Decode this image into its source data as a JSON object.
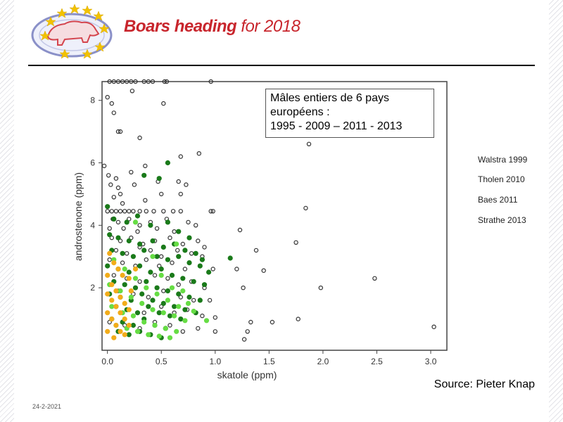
{
  "header": {
    "brand_bold": "Boars heading",
    "brand_rest": " for 2018",
    "logo_icon": "eu-stars-boar-logo-icon"
  },
  "callout": {
    "line1": "Mâles entiers de 6 pays",
    "line2": "européens :",
    "line3": "1995 - 2009 – 2011 - 2013"
  },
  "legend": [
    "Walstra 1999",
    "Tholen 2010",
    "Baes 2011",
    "Strathe 2013"
  ],
  "source": "Source: Pieter Knap",
  "footer_date": "24-2-2021",
  "colors": {
    "brand_red": "#c8252c",
    "walstra": "#333333",
    "tholen": "#1a7a1a",
    "baes": "#66dd44",
    "strathe": "#f2ac1a"
  },
  "chart_data": {
    "type": "scatter",
    "xlabel": "skatole (ppm)",
    "ylabel": "androstenone (ppm)",
    "xlim": [
      -0.05,
      3.15
    ],
    "ylim": [
      0,
      8.6
    ],
    "xticks": [
      "0.0",
      "0.5",
      "1.0",
      "1.5",
      "2.0",
      "2.5",
      "3.0"
    ],
    "xtick_values": [
      0,
      0.5,
      1.0,
      1.5,
      2.0,
      2.5,
      3.0
    ],
    "yticks": [
      "2",
      "4",
      "6",
      "8"
    ],
    "ytick_values": [
      2,
      4,
      6,
      8
    ],
    "grid": false,
    "series": [
      {
        "name": "Walstra 1999",
        "marker": "open-circle",
        "color": "#333333",
        "points": [
          [
            0.02,
            8.6
          ],
          [
            0.06,
            8.6
          ],
          [
            0.1,
            8.6
          ],
          [
            0.14,
            8.6
          ],
          [
            0.18,
            8.6
          ],
          [
            0.22,
            8.6
          ],
          [
            0.26,
            8.6
          ],
          [
            0.34,
            8.6
          ],
          [
            0.38,
            8.6
          ],
          [
            0.42,
            8.6
          ],
          [
            0.53,
            8.6
          ],
          [
            0.55,
            8.6
          ],
          [
            0.96,
            8.6
          ],
          [
            0.23,
            8.3
          ],
          [
            0.0,
            8.1
          ],
          [
            0.04,
            7.9
          ],
          [
            0.52,
            7.9
          ],
          [
            0.06,
            7.6
          ],
          [
            0.1,
            7.0
          ],
          [
            0.12,
            7.0
          ],
          [
            0.3,
            6.8
          ],
          [
            0.68,
            6.2
          ],
          [
            0.85,
            6.3
          ],
          [
            1.87,
            6.6
          ],
          [
            -0.03,
            5.9
          ],
          [
            0.22,
            5.7
          ],
          [
            0.35,
            5.9
          ],
          [
            0.01,
            5.6
          ],
          [
            0.08,
            5.5
          ],
          [
            0.25,
            5.3
          ],
          [
            0.47,
            5.4
          ],
          [
            0.66,
            5.4
          ],
          [
            0.73,
            5.3
          ],
          [
            0.03,
            5.3
          ],
          [
            0.1,
            5.2
          ],
          [
            0.12,
            5.0
          ],
          [
            0.5,
            5.0
          ],
          [
            0.68,
            5.0
          ],
          [
            0.06,
            4.9
          ],
          [
            0.35,
            4.8
          ],
          [
            0.14,
            4.7
          ],
          [
            0.0,
            4.45
          ],
          [
            0.04,
            4.45
          ],
          [
            0.08,
            4.45
          ],
          [
            0.12,
            4.45
          ],
          [
            0.16,
            4.45
          ],
          [
            0.2,
            4.45
          ],
          [
            0.24,
            4.45
          ],
          [
            0.3,
            4.45
          ],
          [
            0.36,
            4.45
          ],
          [
            0.43,
            4.45
          ],
          [
            0.52,
            4.45
          ],
          [
            0.61,
            4.45
          ],
          [
            0.68,
            4.45
          ],
          [
            0.96,
            4.45
          ],
          [
            0.98,
            4.45
          ],
          [
            1.84,
            4.55
          ],
          [
            0.05,
            4.2
          ],
          [
            0.1,
            4.1
          ],
          [
            0.2,
            4.2
          ],
          [
            0.3,
            4.0
          ],
          [
            0.4,
            4.1
          ],
          [
            0.55,
            4.2
          ],
          [
            0.75,
            4.1
          ],
          [
            0.82,
            4.0
          ],
          [
            0.02,
            3.9
          ],
          [
            0.15,
            3.9
          ],
          [
            0.28,
            3.8
          ],
          [
            0.46,
            3.9
          ],
          [
            0.62,
            3.8
          ],
          [
            1.23,
            3.85
          ],
          [
            0.04,
            3.6
          ],
          [
            0.12,
            3.5
          ],
          [
            0.22,
            3.6
          ],
          [
            0.33,
            3.4
          ],
          [
            0.44,
            3.5
          ],
          [
            0.58,
            3.6
          ],
          [
            0.7,
            3.4
          ],
          [
            0.84,
            3.5
          ],
          [
            0.9,
            3.3
          ],
          [
            0.08,
            3.2
          ],
          [
            0.18,
            3.1
          ],
          [
            0.3,
            3.3
          ],
          [
            0.4,
            3.2
          ],
          [
            0.5,
            3.0
          ],
          [
            0.65,
            3.2
          ],
          [
            0.78,
            3.1
          ],
          [
            0.88,
            3.0
          ],
          [
            1.38,
            3.2
          ],
          [
            1.75,
            3.45
          ],
          [
            0.02,
            2.9
          ],
          [
            0.14,
            2.8
          ],
          [
            0.26,
            2.7
          ],
          [
            0.36,
            2.9
          ],
          [
            0.48,
            2.7
          ],
          [
            0.6,
            2.8
          ],
          [
            0.72,
            2.6
          ],
          [
            0.86,
            2.7
          ],
          [
            0.98,
            2.6
          ],
          [
            1.2,
            2.6
          ],
          [
            1.45,
            2.55
          ],
          [
            0.06,
            2.4
          ],
          [
            0.18,
            2.3
          ],
          [
            0.3,
            2.2
          ],
          [
            0.44,
            2.4
          ],
          [
            0.56,
            2.3
          ],
          [
            0.66,
            2.1
          ],
          [
            0.78,
            2.2
          ],
          [
            0.9,
            2.0
          ],
          [
            1.26,
            2.0
          ],
          [
            0.1,
            1.9
          ],
          [
            0.24,
            1.8
          ],
          [
            0.38,
            1.7
          ],
          [
            0.52,
            1.9
          ],
          [
            0.68,
            1.7
          ],
          [
            0.8,
            1.6
          ],
          [
            0.95,
            1.6
          ],
          [
            1.98,
            2.0
          ],
          [
            2.48,
            2.3
          ],
          [
            0.04,
            1.4
          ],
          [
            0.2,
            1.3
          ],
          [
            0.34,
            1.2
          ],
          [
            0.5,
            1.4
          ],
          [
            0.62,
            1.2
          ],
          [
            0.74,
            1.3
          ],
          [
            0.88,
            1.1
          ],
          [
            1.0,
            1.05
          ],
          [
            0.02,
            0.9
          ],
          [
            0.16,
            0.8
          ],
          [
            0.3,
            0.7
          ],
          [
            0.44,
            0.9
          ],
          [
            0.58,
            0.8
          ],
          [
            0.7,
            0.6
          ],
          [
            0.84,
            0.7
          ],
          [
            1.0,
            0.6
          ],
          [
            1.33,
            0.9
          ],
          [
            1.53,
            0.9
          ],
          [
            1.77,
            1.0
          ],
          [
            1.3,
            0.6
          ],
          [
            1.27,
            0.35
          ],
          [
            3.03,
            0.75
          ]
        ]
      },
      {
        "name": "Tholen 2010",
        "marker": "filled-circle",
        "color": "#1a7a1a",
        "points": [
          [
            0.56,
            6.0
          ],
          [
            0.34,
            5.6
          ],
          [
            0.48,
            5.5
          ],
          [
            0.0,
            4.6
          ],
          [
            0.06,
            4.2
          ],
          [
            0.18,
            4.1
          ],
          [
            0.28,
            4.3
          ],
          [
            0.4,
            4.0
          ],
          [
            0.56,
            4.1
          ],
          [
            0.66,
            3.8
          ],
          [
            0.76,
            3.6
          ],
          [
            1.14,
            2.95
          ],
          [
            0.02,
            3.7
          ],
          [
            0.1,
            3.6
          ],
          [
            0.2,
            3.5
          ],
          [
            0.3,
            3.4
          ],
          [
            0.42,
            3.5
          ],
          [
            0.52,
            3.3
          ],
          [
            0.62,
            3.4
          ],
          [
            0.72,
            3.2
          ],
          [
            0.82,
            3.1
          ],
          [
            0.88,
            2.9
          ],
          [
            0.04,
            3.2
          ],
          [
            0.14,
            3.1
          ],
          [
            0.24,
            3.0
          ],
          [
            0.34,
            3.2
          ],
          [
            0.46,
            3.0
          ],
          [
            0.56,
            2.9
          ],
          [
            0.66,
            3.0
          ],
          [
            0.76,
            2.8
          ],
          [
            0.86,
            2.7
          ],
          [
            0.94,
            2.5
          ],
          [
            0.0,
            2.7
          ],
          [
            0.1,
            2.6
          ],
          [
            0.2,
            2.5
          ],
          [
            0.3,
            2.7
          ],
          [
            0.4,
            2.5
          ],
          [
            0.5,
            2.6
          ],
          [
            0.6,
            2.4
          ],
          [
            0.7,
            2.3
          ],
          [
            0.8,
            2.2
          ],
          [
            0.9,
            2.1
          ],
          [
            0.06,
            2.2
          ],
          [
            0.16,
            2.1
          ],
          [
            0.26,
            2.0
          ],
          [
            0.36,
            2.2
          ],
          [
            0.46,
            2.0
          ],
          [
            0.56,
            1.9
          ],
          [
            0.66,
            1.8
          ],
          [
            0.76,
            1.7
          ],
          [
            0.86,
            1.6
          ],
          [
            0.02,
            1.8
          ],
          [
            0.12,
            1.7
          ],
          [
            0.22,
            1.6
          ],
          [
            0.32,
            1.8
          ],
          [
            0.42,
            1.6
          ],
          [
            0.52,
            1.5
          ],
          [
            0.62,
            1.4
          ],
          [
            0.72,
            1.3
          ],
          [
            0.82,
            1.2
          ],
          [
            0.08,
            1.4
          ],
          [
            0.18,
            1.3
          ],
          [
            0.28,
            1.2
          ],
          [
            0.38,
            1.4
          ],
          [
            0.48,
            1.2
          ],
          [
            0.58,
            1.1
          ],
          [
            0.68,
            1.0
          ],
          [
            0.04,
            1.0
          ],
          [
            0.14,
            0.9
          ],
          [
            0.24,
            0.8
          ],
          [
            0.34,
            1.0
          ],
          [
            0.44,
            0.8
          ],
          [
            0.54,
            0.7
          ],
          [
            0.1,
            0.6
          ],
          [
            0.2,
            0.5
          ],
          [
            0.3,
            0.6
          ],
          [
            0.4,
            0.5
          ],
          [
            0.5,
            0.4
          ]
        ]
      },
      {
        "name": "Baes 2011",
        "marker": "filled-circle",
        "color": "#66dd44",
        "points": [
          [
            0.26,
            4.1
          ],
          [
            0.64,
            3.4
          ],
          [
            0.42,
            3.0
          ],
          [
            0.5,
            2.4
          ],
          [
            0.6,
            2.0
          ],
          [
            0.7,
            1.9
          ],
          [
            0.75,
            1.5
          ],
          [
            0.8,
            1.25
          ],
          [
            0.92,
            0.95
          ],
          [
            0.06,
            2.9
          ],
          [
            0.16,
            2.6
          ],
          [
            0.26,
            2.3
          ],
          [
            0.36,
            2.0
          ],
          [
            0.46,
            1.8
          ],
          [
            0.56,
            1.6
          ],
          [
            0.66,
            1.4
          ],
          [
            0.02,
            2.1
          ],
          [
            0.12,
            1.9
          ],
          [
            0.22,
            1.7
          ],
          [
            0.32,
            1.5
          ],
          [
            0.42,
            1.3
          ],
          [
            0.52,
            1.2
          ],
          [
            0.62,
            1.1
          ],
          [
            0.72,
            0.95
          ],
          [
            0.04,
            1.4
          ],
          [
            0.14,
            1.2
          ],
          [
            0.24,
            1.1
          ],
          [
            0.34,
            0.9
          ],
          [
            0.44,
            0.8
          ],
          [
            0.54,
            0.7
          ],
          [
            0.64,
            0.6
          ],
          [
            0.08,
            0.8
          ],
          [
            0.18,
            0.7
          ],
          [
            0.28,
            0.6
          ],
          [
            0.38,
            0.5
          ],
          [
            0.48,
            0.45
          ],
          [
            0.58,
            0.4
          ]
        ]
      },
      {
        "name": "Strathe 2013",
        "marker": "filled-circle",
        "color": "#f2ac1a",
        "points": [
          [
            0.02,
            3.1
          ],
          [
            0.06,
            2.8
          ],
          [
            0.1,
            2.6
          ],
          [
            0.14,
            2.4
          ],
          [
            0.2,
            2.3
          ],
          [
            0.26,
            2.6
          ],
          [
            0.22,
            1.9
          ],
          [
            0.0,
            2.4
          ],
          [
            0.04,
            2.1
          ],
          [
            0.08,
            1.9
          ],
          [
            0.12,
            1.7
          ],
          [
            0.16,
            1.5
          ],
          [
            0.2,
            1.3
          ],
          [
            0.0,
            1.8
          ],
          [
            0.04,
            1.6
          ],
          [
            0.08,
            1.4
          ],
          [
            0.12,
            1.2
          ],
          [
            0.16,
            1.0
          ],
          [
            0.2,
            0.8
          ],
          [
            0.0,
            1.2
          ],
          [
            0.04,
            1.0
          ],
          [
            0.08,
            0.8
          ],
          [
            0.12,
            0.6
          ],
          [
            0.16,
            0.5
          ],
          [
            0.0,
            0.6
          ],
          [
            0.06,
            0.4
          ]
        ]
      }
    ]
  }
}
